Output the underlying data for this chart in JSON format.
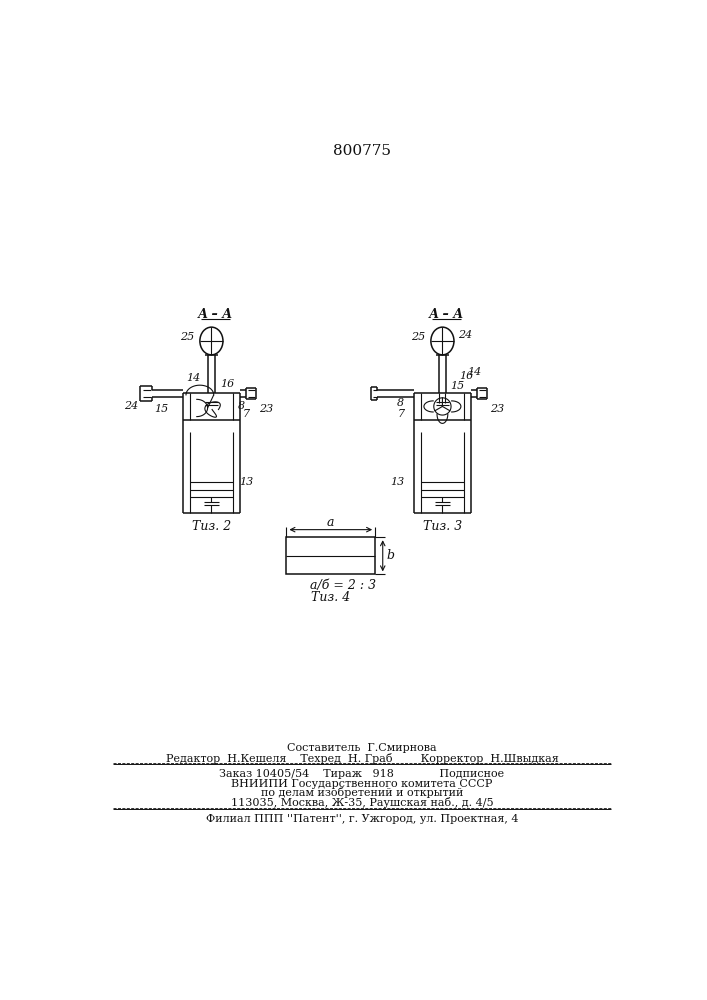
{
  "patent_number": "800775",
  "background_color": "#ffffff",
  "fig2_caption": "Τиз. 2",
  "fig3_caption": "Τиз. 3",
  "fig4_caption": "Τиз. 4",
  "fig4_ratio": "а/б = 2 : 3",
  "footer_line1": "Составитель  Г.Смирнова",
  "footer_line2": "Редактор  Н.Кешеля    Техред  Н. Граб       Корректор  Н.Швыдкая",
  "footer_line3": "Заказ 10405/54    Тираж   918             Подписное",
  "footer_line4": "ВНИИПИ Государственного комитета СССР",
  "footer_line5": "по делам изобретений и открытий",
  "footer_line6": "113035, Москва, Ж-35, Раушская наб., д. 4/5",
  "footer_line7": "Филиал ППП ''Патент'', г. Ужгород, ул. Проектная, 4",
  "line_color": "#111111",
  "text_color": "#111111"
}
